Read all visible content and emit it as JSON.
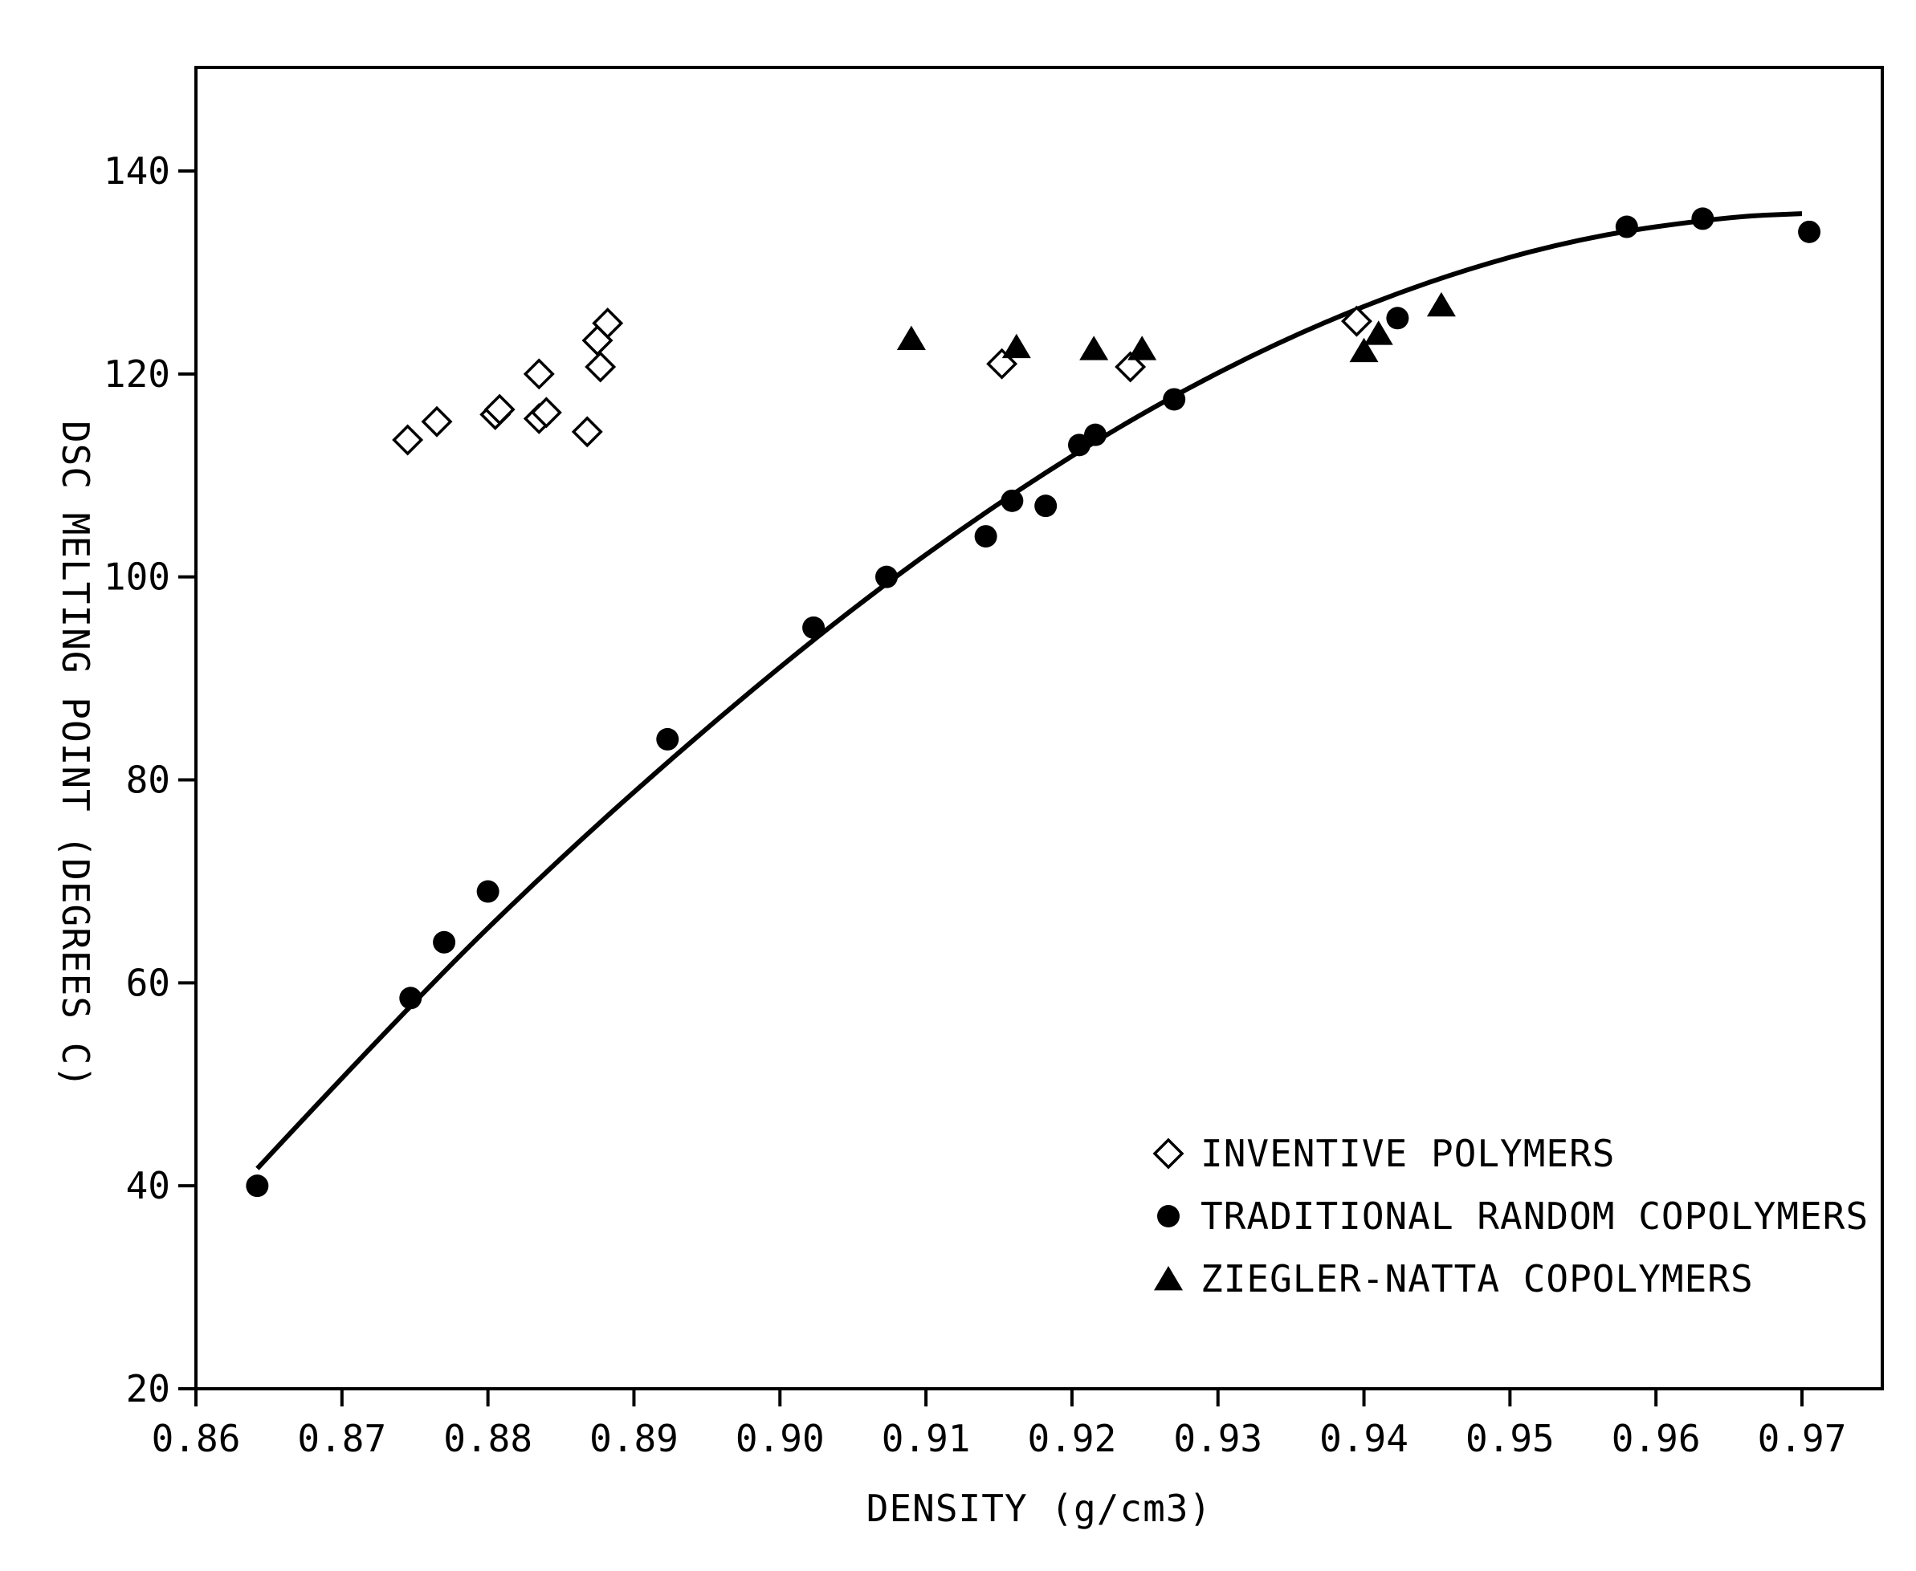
{
  "chart_data": {
    "type": "scatter",
    "title": "",
    "xlabel": "DENSITY (g/cm3)",
    "ylabel": "DSC MELTING POINT (DEGREES C)",
    "xlim": [
      0.86,
      0.975
    ],
    "ylim": [
      20,
      150
    ],
    "xticks": [
      0.86,
      0.87,
      0.88,
      0.89,
      0.9,
      0.91,
      0.92,
      0.93,
      0.94,
      0.95,
      0.96,
      0.97
    ],
    "xtick_labels": [
      "0.86",
      "0.87",
      "0.88",
      "0.89",
      "0.90",
      "0.91",
      "0.92",
      "0.93",
      "0.94",
      "0.95",
      "0.96",
      "0.97"
    ],
    "yticks": [
      20,
      40,
      60,
      80,
      100,
      120,
      140
    ],
    "ytick_labels": [
      "20",
      "40",
      "60",
      "80",
      "100",
      "120",
      "140"
    ],
    "grid": false,
    "legend_position": "bottom-right",
    "series": [
      {
        "name": "INVENTIVE POLYMERS",
        "marker": "diamond-open",
        "points": [
          [
            0.8745,
            113.5
          ],
          [
            0.8765,
            115.3
          ],
          [
            0.8805,
            116.0
          ],
          [
            0.8808,
            116.5
          ],
          [
            0.8835,
            115.6
          ],
          [
            0.884,
            116.2
          ],
          [
            0.8835,
            120.0
          ],
          [
            0.8868,
            114.3
          ],
          [
            0.8875,
            123.3
          ],
          [
            0.8877,
            120.7
          ],
          [
            0.8882,
            125.0
          ],
          [
            0.9152,
            121.0
          ],
          [
            0.924,
            120.7
          ],
          [
            0.9395,
            125.2
          ]
        ]
      },
      {
        "name": "TRADITIONAL RANDOM COPOLYMERS",
        "marker": "circle-filled",
        "points": [
          [
            0.8642,
            40.0
          ],
          [
            0.8747,
            58.5
          ],
          [
            0.877,
            64.0
          ],
          [
            0.88,
            69.0
          ],
          [
            0.8923,
            84.0
          ],
          [
            0.9023,
            95.0
          ],
          [
            0.9073,
            100.0
          ],
          [
            0.9141,
            104.0
          ],
          [
            0.9159,
            107.5
          ],
          [
            0.9182,
            107.0
          ],
          [
            0.9205,
            113.0
          ],
          [
            0.9216,
            114.0
          ],
          [
            0.927,
            117.5
          ],
          [
            0.9423,
            125.5
          ],
          [
            0.958,
            134.5
          ],
          [
            0.9632,
            135.3
          ],
          [
            0.9705,
            134.0
          ]
        ]
      },
      {
        "name": "ZIEGLER-NATTA COPOLYMERS",
        "marker": "triangle-filled",
        "points": [
          [
            0.909,
            123.5
          ],
          [
            0.9162,
            122.7
          ],
          [
            0.9215,
            122.5
          ],
          [
            0.9248,
            122.5
          ],
          [
            0.94,
            122.3
          ],
          [
            0.941,
            124.0
          ],
          [
            0.9453,
            126.8
          ]
        ]
      }
    ],
    "fit_curve": {
      "style": "solid-black",
      "x_range": [
        0.8642,
        0.97
      ],
      "points": [
        [
          0.8642,
          41.7
        ],
        [
          0.875,
          58.4
        ],
        [
          0.885,
          72.4
        ],
        [
          0.895,
          85.2
        ],
        [
          0.905,
          97.0
        ],
        [
          0.915,
          107.4
        ],
        [
          0.925,
          116.4
        ],
        [
          0.935,
          123.8
        ],
        [
          0.945,
          129.5
        ],
        [
          0.955,
          133.5
        ],
        [
          0.965,
          135.5
        ],
        [
          0.97,
          135.8
        ]
      ]
    }
  }
}
